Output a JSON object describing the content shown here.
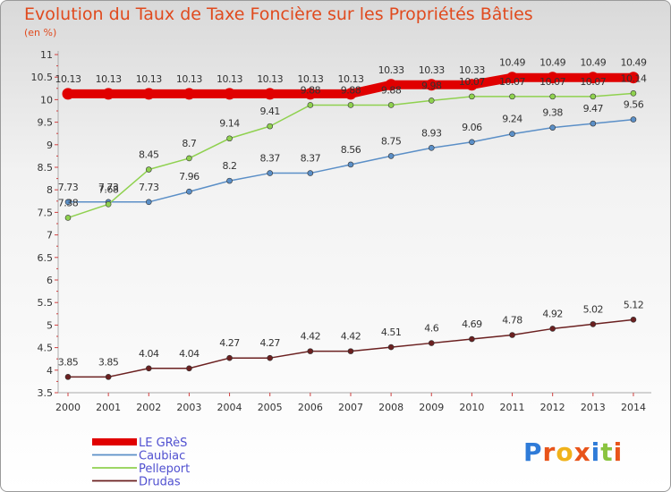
{
  "chart_data": {
    "type": "line",
    "title": "Evolution du Taux de Taxe Foncière sur les Propriétés Bâties",
    "unit_label": "(en %)",
    "categories": [
      "2000",
      "2001",
      "2002",
      "2003",
      "2004",
      "2005",
      "2006",
      "2007",
      "2008",
      "2009",
      "2010",
      "2011",
      "2012",
      "2013",
      "2014"
    ],
    "ylim": [
      3.5,
      11
    ],
    "yticks": [
      "3.5",
      "4",
      "4.5",
      "5",
      "5.5",
      "6",
      "6.5",
      "7",
      "7.5",
      "8",
      "8.5",
      "9",
      "9.5",
      "10",
      "10.5",
      "11"
    ],
    "grid": false,
    "legend_position": "bottom-left",
    "series": [
      {
        "name": "LE GRèS",
        "color": "#e00000",
        "values": [
          10.13,
          10.13,
          10.13,
          10.13,
          10.13,
          10.13,
          10.13,
          10.13,
          10.33,
          10.33,
          10.33,
          10.49,
          10.49,
          10.49,
          10.49
        ],
        "labels": [
          "10.13",
          "10.13",
          "10.13",
          "10.13",
          "10.13",
          "10.13",
          "10.13",
          "10.13",
          "10.33",
          "10.33",
          "10.33",
          "10.49",
          "10.49",
          "10.49",
          "10.49"
        ]
      },
      {
        "name": "Caubiac",
        "color": "#5b8fc7",
        "values": [
          7.73,
          7.73,
          7.73,
          7.96,
          8.2,
          8.37,
          8.37,
          8.56,
          8.75,
          8.93,
          9.06,
          9.24,
          9.38,
          9.47,
          9.56
        ],
        "labels": [
          "7.73",
          "7.73",
          "7.73",
          "7.96",
          "8.2",
          "8.37",
          "8.37",
          "8.56",
          "8.75",
          "8.93",
          "9.06",
          "9.24",
          "9.38",
          "9.47",
          "9.56"
        ]
      },
      {
        "name": "Pelleport",
        "color": "#8fd14f",
        "values": [
          7.38,
          7.68,
          8.45,
          8.7,
          9.14,
          9.41,
          9.88,
          9.88,
          9.88,
          9.98,
          10.07,
          10.07,
          10.07,
          10.07,
          10.14
        ],
        "labels": [
          "7.38",
          "7.68",
          "8.45",
          "8.7",
          "9.14",
          "9.41",
          "9.88",
          "9.88",
          "9.88",
          "9.98",
          "10.07",
          "10.07",
          "10.07",
          "10.07",
          "10.14"
        ]
      },
      {
        "name": "Drudas",
        "color": "#6b2020",
        "values": [
          3.85,
          3.85,
          4.04,
          4.04,
          4.27,
          4.27,
          4.42,
          4.42,
          4.51,
          4.6,
          4.69,
          4.78,
          4.92,
          5.02,
          5.12
        ],
        "labels": [
          "3.85",
          "3.85",
          "4.04",
          "4.04",
          "4.27",
          "4.27",
          "4.42",
          "4.42",
          "4.51",
          "4.6",
          "4.69",
          "4.78",
          "4.92",
          "5.02",
          "5.12"
        ]
      }
    ]
  },
  "logo": {
    "text": "Proxiti",
    "letter_colors": [
      "#2f7bd8",
      "#e8541a",
      "#f0b21a",
      "#e8541a",
      "#2f7bd8",
      "#8ac43f",
      "#e8541a"
    ]
  }
}
